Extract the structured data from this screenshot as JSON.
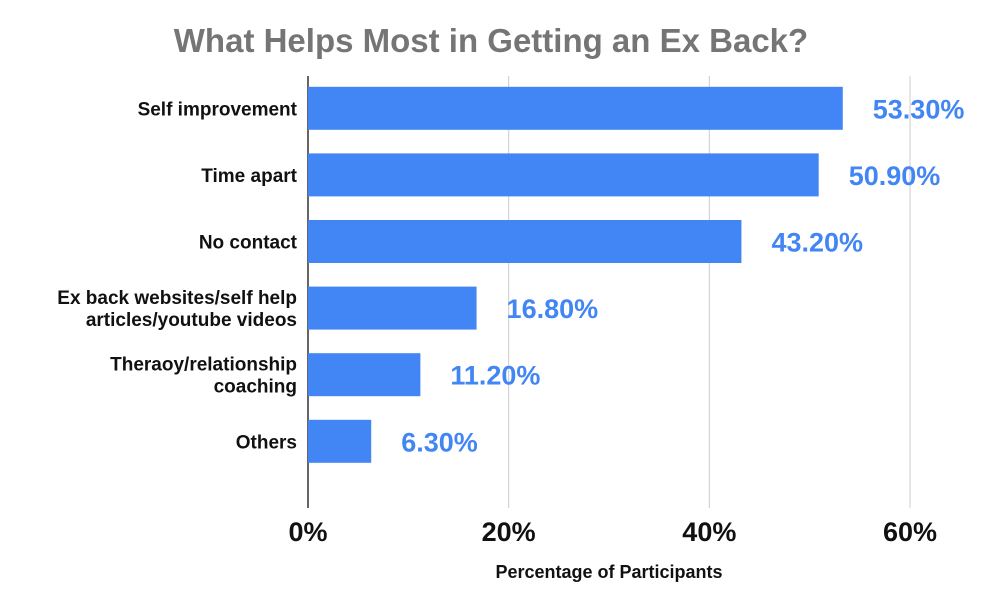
{
  "chart_data": {
    "type": "bar",
    "orientation": "horizontal",
    "title": "What Helps Most in Getting an Ex Back?",
    "xlabel": "Percentage of Participants",
    "ylabel": "",
    "categories": [
      [
        "Self improvement"
      ],
      [
        "Time apart"
      ],
      [
        "No contact"
      ],
      [
        "Ex back websites/self help",
        "articles/youtube videos"
      ],
      [
        "Theraoy/relationship",
        "coaching"
      ],
      [
        "Others"
      ]
    ],
    "values": [
      53.3,
      50.9,
      43.2,
      16.8,
      11.2,
      6.3
    ],
    "data_labels": [
      "53.30%",
      "50.90%",
      "43.20%",
      "16.80%",
      "11.20%",
      "6.30%"
    ],
    "xlim": [
      0,
      60
    ],
    "xticks": [
      0,
      20,
      40,
      60
    ],
    "xtick_labels": [
      "0%",
      "20%",
      "40%",
      "60%"
    ],
    "grid": "vertical",
    "legend": "none",
    "colors": {
      "bar": "#4285f4",
      "data_label": "#4285f4",
      "grid": "#cccccc",
      "axis": "#333333",
      "title": "#757575"
    }
  }
}
